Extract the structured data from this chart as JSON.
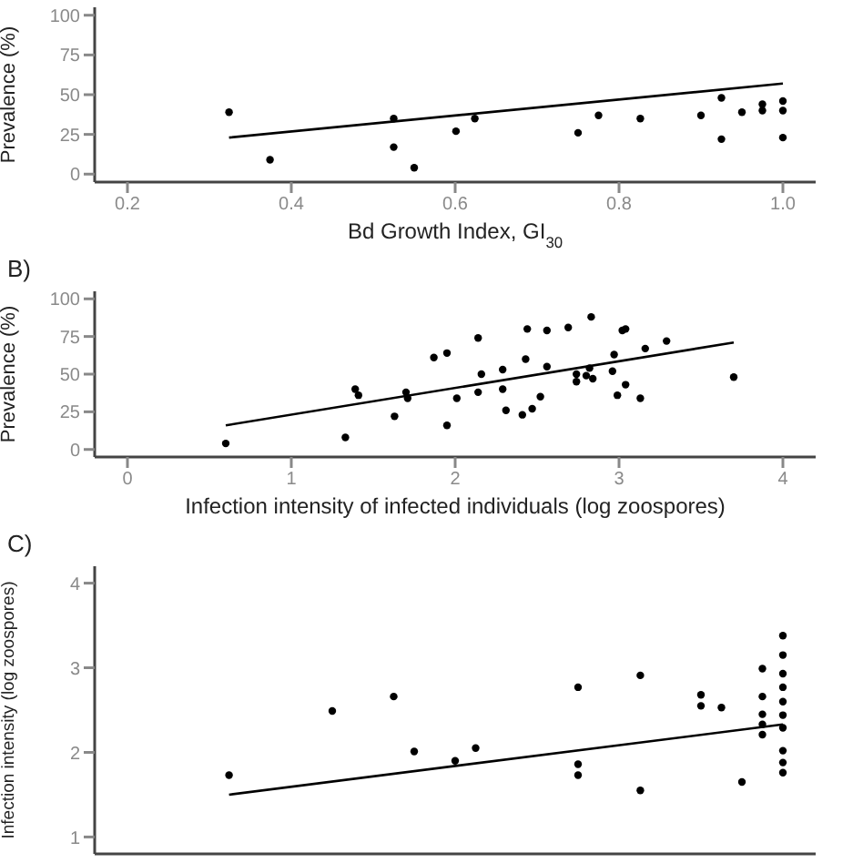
{
  "chart_data": [
    {
      "type": "scatter",
      "xlabel": "Bd Growth Index, GI$_{30}$",
      "ylabel": "Prevalence (%)",
      "xlim": [
        0.16,
        1.04
      ],
      "xticks": [
        {
          "value": 0.2,
          "label": "0.2"
        },
        {
          "value": 0.4,
          "label": "0.4"
        },
        {
          "value": 0.6,
          "label": "0.6"
        },
        {
          "value": 0.8,
          "label": "0.8"
        },
        {
          "value": 1.0,
          "label": "1.0"
        }
      ],
      "ylim": [
        -5,
        105
      ],
      "yticks": [
        0,
        25,
        50,
        75,
        100
      ],
      "grid": false,
      "series": [
        {
          "marker": "circle",
          "color": "#000000",
          "x": [
            0.324,
            0.374,
            0.525,
            0.525,
            0.55,
            0.601,
            0.624,
            0.75,
            0.775,
            0.826,
            0.9,
            0.925,
            0.925,
            0.95,
            0.975,
            0.975,
            1.0,
            1.0,
            1.0
          ],
          "values": [
            39,
            9,
            35,
            17,
            4,
            27,
            35,
            26,
            37,
            35,
            37,
            22,
            48,
            39,
            40,
            44,
            40,
            46,
            23
          ]
        },
        {
          "type": "line",
          "marker": "none",
          "color": "#000000",
          "x": [
            0.324,
            1.0
          ],
          "values": [
            23,
            57
          ]
        }
      ]
    },
    {
      "type": "scatter",
      "title": "B)",
      "xlabel": "Infection intensity of infected individuals (log zoospores)",
      "ylabel": "Prevalence (%)",
      "xlim": [
        -0.2,
        4.2
      ],
      "xticks": [
        0,
        1,
        2,
        3,
        4
      ],
      "ylim": [
        -5,
        105
      ],
      "yticks": [
        0,
        25,
        50,
        75,
        100
      ],
      "grid": false,
      "series": [
        {
          "marker": "circle",
          "color": "#000000",
          "x": [
            0.6,
            1.33,
            1.39,
            1.41,
            1.63,
            1.7,
            1.71,
            1.87,
            1.95,
            1.95,
            2.01,
            2.14,
            2.14,
            2.16,
            2.29,
            2.29,
            2.31,
            2.41,
            2.43,
            2.44,
            2.47,
            2.52,
            2.56,
            2.56,
            2.69,
            2.74,
            2.74,
            2.8,
            2.82,
            2.83,
            2.84,
            2.96,
            2.97,
            2.99,
            3.02,
            3.04,
            3.04,
            3.13,
            3.16,
            3.29,
            3.7
          ],
          "values": [
            4,
            8,
            40,
            36,
            22,
            38,
            34,
            61,
            64,
            16,
            34,
            74,
            38,
            50,
            53,
            40,
            26,
            23,
            60,
            80,
            27,
            35,
            55,
            79,
            81,
            50,
            45,
            49,
            54,
            88,
            47,
            52,
            63,
            36,
            79,
            80,
            43,
            34,
            67,
            72,
            48
          ]
        },
        {
          "type": "line",
          "marker": "none",
          "color": "#000000",
          "x": [
            0.6,
            3.7
          ],
          "values": [
            16,
            71
          ]
        }
      ]
    },
    {
      "type": "scatter",
      "title": "C)",
      "ylabel": "Infection intensity (log zoospores)",
      "xlim": [
        0.16,
        1.04
      ],
      "ylim": [
        0.8,
        4.2
      ],
      "yticks": [
        1,
        2,
        3,
        4
      ],
      "tick_labels": "y",
      "grid": false,
      "series": [
        {
          "marker": "circle",
          "color": "#000000",
          "x": [
            0.324,
            0.45,
            0.525,
            0.55,
            0.6,
            0.625,
            0.75,
            0.75,
            0.75,
            0.826,
            0.826,
            0.9,
            0.9,
            0.925,
            0.95,
            0.975,
            0.975,
            0.975,
            0.975,
            0.975,
            1.0,
            1.0,
            1.0,
            1.0,
            1.0,
            1.0,
            1.0,
            1.0,
            1.0,
            1.0
          ],
          "values": [
            1.73,
            2.49,
            2.66,
            2.01,
            1.9,
            2.05,
            2.77,
            1.86,
            1.73,
            2.91,
            1.55,
            2.68,
            2.55,
            2.53,
            1.65,
            2.99,
            2.66,
            2.45,
            2.33,
            2.21,
            3.38,
            3.15,
            2.93,
            2.77,
            2.6,
            2.44,
            2.29,
            2.02,
            1.88,
            1.76
          ]
        },
        {
          "type": "line",
          "marker": "none",
          "color": "#000000",
          "x": [
            0.324,
            1.0
          ],
          "values": [
            1.5,
            2.33
          ]
        }
      ]
    }
  ]
}
